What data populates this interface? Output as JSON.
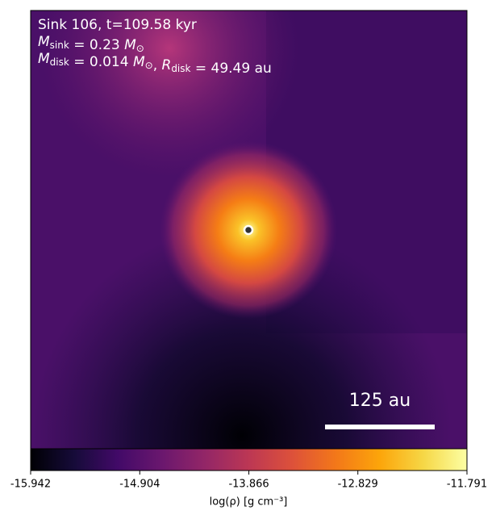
{
  "chart_data": {
    "type": "heatmap",
    "annotations": [
      [
        "Sink 106, t=109.58 kyr"
      ],
      [
        [
          "M",
          "sink"
        ],
        " = 0.23 ",
        [
          "M",
          "⊙"
        ]
      ],
      [
        [
          "M",
          "disk"
        ],
        " = 0.014 ",
        [
          "M",
          "⊙"
        ],
        ", ",
        [
          "R",
          "disk"
        ],
        " = 49.49 au"
      ]
    ],
    "scale_bar_label": "125 au",
    "colorbar": {
      "label": "log(ρ) [g cm⁻³]",
      "clim": [
        -15.942,
        -11.791
      ],
      "ticks": [
        -15.942,
        -14.904,
        -13.866,
        -12.829,
        -11.791
      ],
      "colormap": "inferno"
    }
  }
}
